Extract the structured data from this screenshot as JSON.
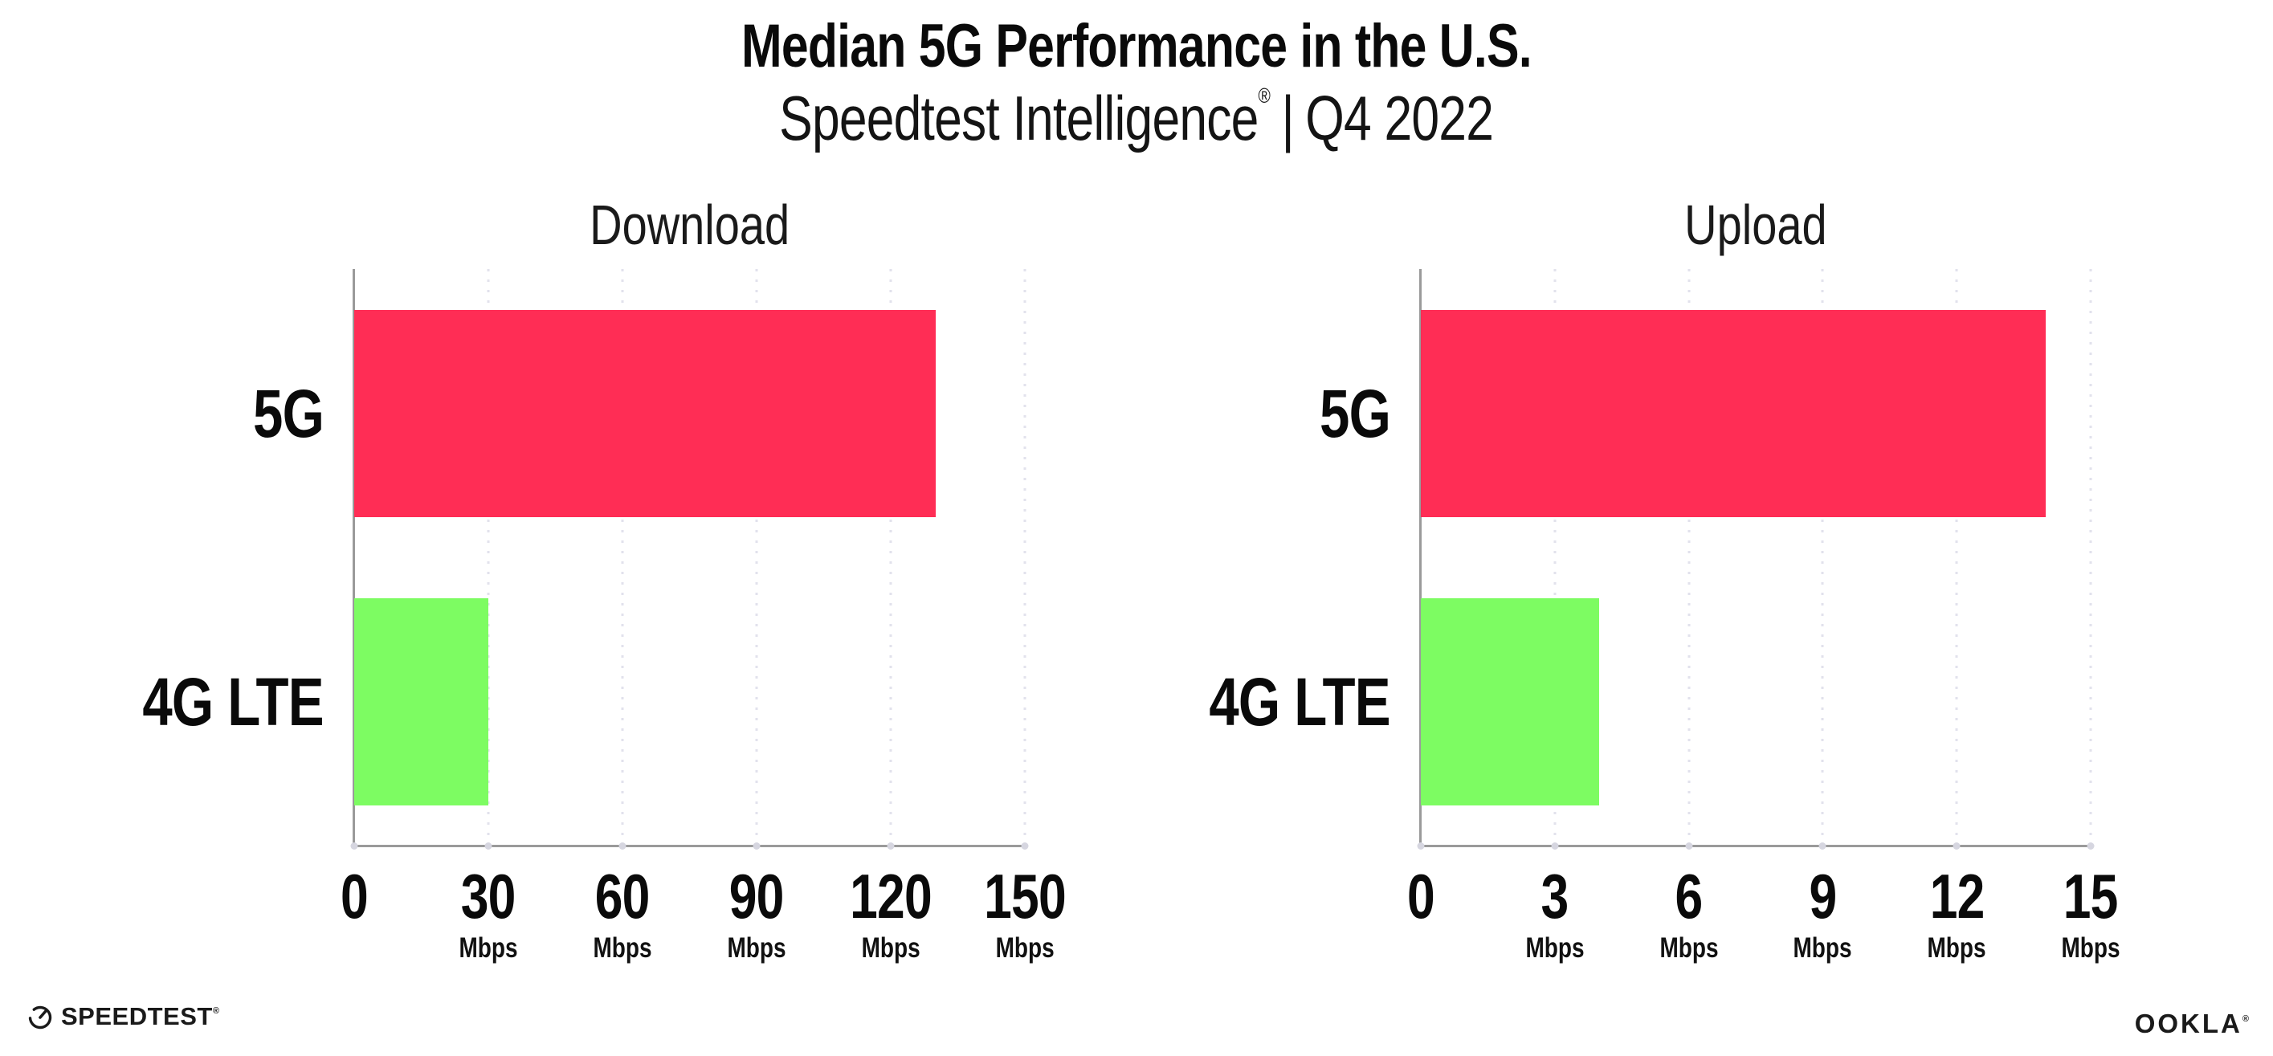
{
  "title": "Median 5G Performance in the U.S.",
  "subtitle": {
    "product": "Speedtest Intelligence",
    "registered_mark": "®",
    "separator": "|",
    "period": "Q4 2022"
  },
  "colors": {
    "bar_5g": "#ff2d55",
    "bar_4g_lte": "#7dfc62",
    "axis": "#9a9a9a",
    "gridline": "#e2e2ec",
    "background": "#ffffff",
    "text": "#0a0a0a"
  },
  "chart_data": [
    {
      "type": "bar",
      "orientation": "horizontal",
      "title": "Download",
      "categories": [
        "5G",
        "4G LTE"
      ],
      "values": [
        130,
        30
      ],
      "unit": "Mbps",
      "xlim": [
        0,
        150
      ],
      "xticks": [
        0,
        30,
        60,
        90,
        120,
        150
      ],
      "tick_suffix": "Mbps",
      "bar_colors": [
        "#ff2d55",
        "#7dfc62"
      ],
      "grid": "dotted-vertical",
      "legend": "none"
    },
    {
      "type": "bar",
      "orientation": "horizontal",
      "title": "Upload",
      "categories": [
        "5G",
        "4G LTE"
      ],
      "values": [
        14,
        4
      ],
      "unit": "Mbps",
      "xlim": [
        0,
        15
      ],
      "xticks": [
        0,
        3,
        6,
        9,
        12,
        15
      ],
      "tick_suffix": "Mbps",
      "bar_colors": [
        "#ff2d55",
        "#7dfc62"
      ],
      "grid": "dotted-vertical",
      "legend": "none"
    }
  ],
  "footer": {
    "speedtest_wordmark": "SPEEDTEST",
    "speedtest_mark": "®",
    "ookla_wordmark": "OOKLA",
    "ookla_mark": "®"
  }
}
